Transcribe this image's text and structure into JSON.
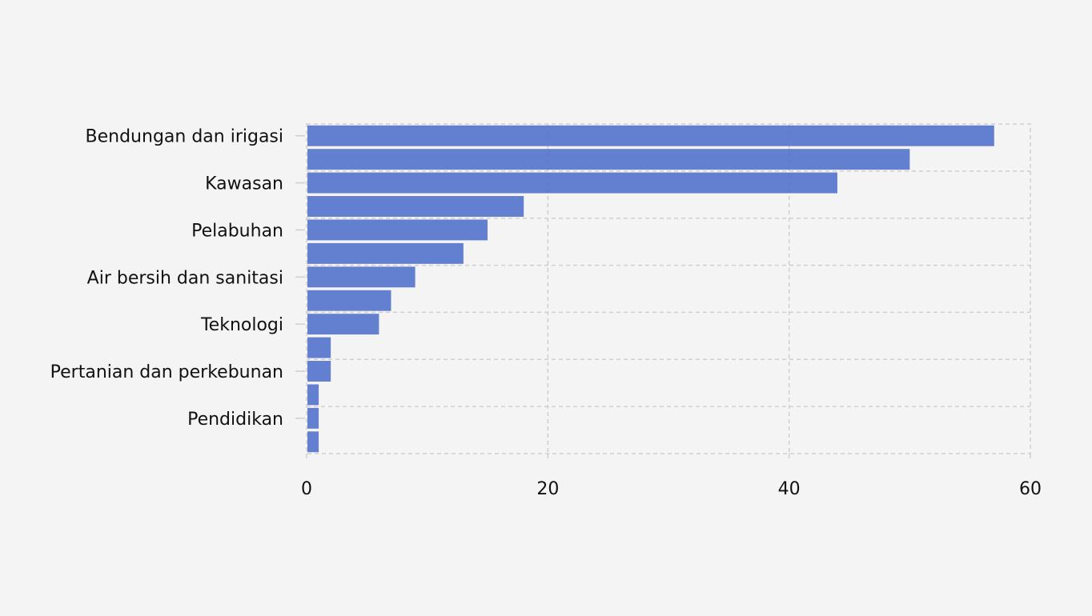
{
  "chart_data": {
    "type": "bar",
    "orientation": "horizontal",
    "title": "",
    "xlabel": "",
    "ylabel": "",
    "xlim": [
      0,
      60
    ],
    "x_ticks": [
      0,
      20,
      40,
      60
    ],
    "grid": true,
    "bar_color": "#4f6ecb",
    "categories": [
      "Bendungan dan irigasi",
      "",
      "Kawasan",
      "",
      "Pelabuhan",
      "",
      "Air bersih dan sanitasi",
      "",
      "Teknologi",
      "",
      "Pertanian dan perkebunan",
      "",
      "Pendidikan",
      ""
    ],
    "values": [
      57,
      50,
      44,
      18,
      15,
      13,
      9,
      7,
      6,
      2,
      2,
      1,
      1,
      1
    ]
  }
}
